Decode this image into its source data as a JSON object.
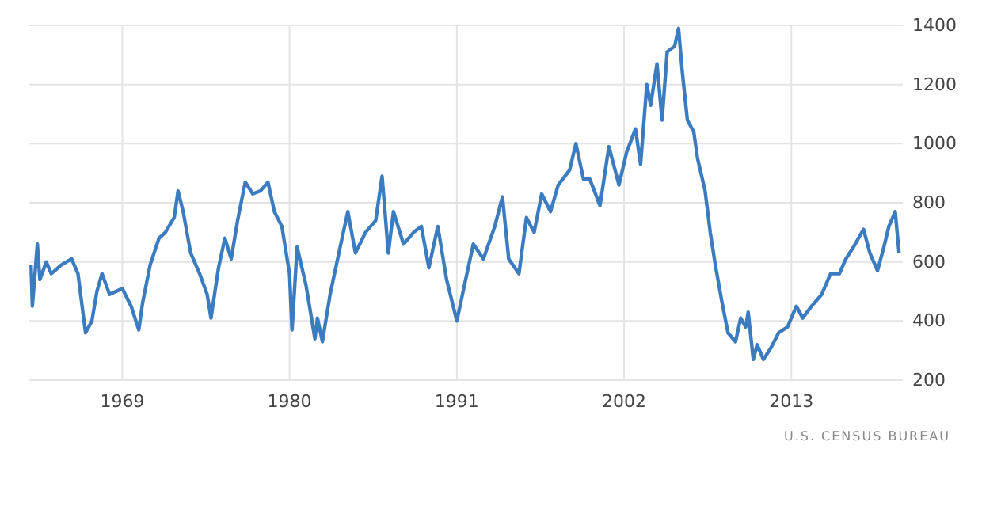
{
  "chart_data": {
    "type": "line",
    "x": [
      "1963-01",
      "1963-02",
      "1963-06",
      "1963-08",
      "1964-01",
      "1964-05",
      "1965-01",
      "1965-09",
      "1966-02",
      "1966-08",
      "1967-01",
      "1967-05",
      "1967-09",
      "1968-03",
      "1969-01",
      "1969-08",
      "1970-02",
      "1970-05",
      "1970-11",
      "1971-06",
      "1971-11",
      "1972-06",
      "1972-09",
      "1973-01",
      "1973-07",
      "1974-02",
      "1974-08",
      "1974-11",
      "1975-05",
      "1975-10",
      "1976-03",
      "1976-08",
      "1977-02",
      "1977-08",
      "1978-02",
      "1978-08",
      "1979-01",
      "1979-07",
      "1980-01",
      "1980-03",
      "1980-07",
      "1981-02",
      "1981-09",
      "1981-11",
      "1982-03",
      "1982-09",
      "1983-05",
      "1983-11",
      "1984-05",
      "1985-01",
      "1985-09",
      "1986-02",
      "1986-07",
      "1986-11",
      "1987-07",
      "1988-03",
      "1988-09",
      "1989-03",
      "1989-10",
      "1990-05",
      "1991-01",
      "1991-06",
      "1992-02",
      "1992-10",
      "1993-07",
      "1994-01",
      "1994-06",
      "1995-02",
      "1995-08",
      "1996-02",
      "1996-08",
      "1997-03",
      "1997-09",
      "1998-06",
      "1998-11",
      "1999-05",
      "1999-10",
      "2000-06",
      "2001-01",
      "2001-09",
      "2002-03",
      "2002-10",
      "2003-02",
      "2003-07",
      "2003-10",
      "2004-03",
      "2004-07",
      "2004-11",
      "2005-05",
      "2005-08",
      "2005-11",
      "2006-03",
      "2006-08",
      "2006-11",
      "2007-05",
      "2007-09",
      "2008-01",
      "2008-06",
      "2008-11",
      "2009-05",
      "2009-09",
      "2010-01",
      "2010-03",
      "2010-07",
      "2010-10",
      "2011-03",
      "2011-09",
      "2012-03",
      "2012-10",
      "2013-05",
      "2013-10",
      "2014-05",
      "2015-01",
      "2015-08",
      "2016-03",
      "2016-08",
      "2017-02",
      "2017-10",
      "2018-03",
      "2018-09",
      "2019-02",
      "2019-06",
      "2019-11",
      "2020-02"
    ],
    "series": [
      {
        "color": "#3b7bbf",
        "values": [
          590,
          450,
          660,
          540,
          600,
          560,
          590,
          610,
          560,
          360,
          400,
          500,
          560,
          490,
          510,
          450,
          370,
          460,
          590,
          680,
          700,
          750,
          840,
          770,
          630,
          560,
          490,
          410,
          580,
          680,
          610,
          740,
          870,
          830,
          840,
          870,
          770,
          720,
          560,
          370,
          650,
          520,
          340,
          410,
          330,
          490,
          650,
          770,
          630,
          700,
          740,
          890,
          630,
          770,
          660,
          700,
          720,
          580,
          720,
          540,
          400,
          500,
          660,
          610,
          720,
          820,
          610,
          560,
          750,
          700,
          830,
          770,
          860,
          910,
          1000,
          880,
          880,
          790,
          990,
          860,
          970,
          1050,
          930,
          1200,
          1130,
          1270,
          1080,
          1310,
          1330,
          1390,
          1240,
          1080,
          1040,
          950,
          840,
          700,
          590,
          470,
          360,
          330,
          410,
          380,
          430,
          270,
          320,
          270,
          310,
          360,
          380,
          450,
          410,
          450,
          490,
          560,
          560,
          610,
          650,
          710,
          630,
          570,
          650,
          720,
          770,
          630
        ]
      }
    ],
    "xlim": [
      "1962-11",
      "2020-05"
    ],
    "xticks": [
      "1969",
      "1980",
      "1991",
      "2002",
      "2013"
    ],
    "ylim": [
      200,
      1400
    ],
    "yticks": [
      200,
      400,
      600,
      800,
      1000,
      1200,
      1400
    ],
    "grid": true,
    "marker": "none",
    "line_style": "solid",
    "annotations": [
      "U.S. CENSUS BUREAU"
    ]
  }
}
